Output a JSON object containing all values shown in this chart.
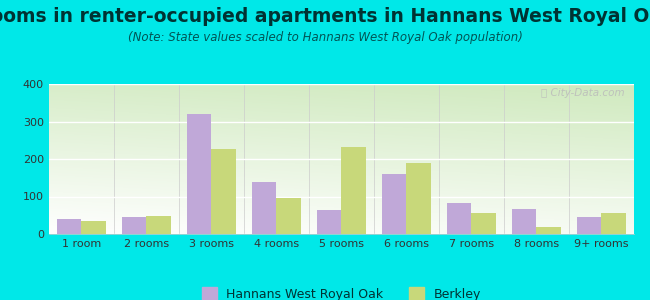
{
  "title": "Rooms in renter-occupied apartments in Hannans West Royal Oak",
  "subtitle": "(Note: State values scaled to Hannans West Royal Oak population)",
  "categories": [
    "1 room",
    "2 rooms",
    "3 rooms",
    "4 rooms",
    "5 rooms",
    "6 rooms",
    "7 rooms",
    "8 rooms",
    "9+ rooms"
  ],
  "hannans": [
    40,
    45,
    320,
    138,
    63,
    160,
    82,
    67,
    45
  ],
  "berkley": [
    35,
    48,
    228,
    95,
    233,
    190,
    57,
    20,
    57
  ],
  "hannans_color": "#c0a8d8",
  "berkley_color": "#c8d87a",
  "background_outer": "#00e8e8",
  "ylim": [
    0,
    400
  ],
  "yticks": [
    0,
    100,
    200,
    300,
    400
  ],
  "bar_width": 0.38,
  "legend_labels": [
    "Hannans West Royal Oak",
    "Berkley"
  ],
  "title_fontsize": 13.5,
  "subtitle_fontsize": 8.5,
  "tick_fontsize": 8,
  "title_color": "#003333",
  "subtitle_color": "#005555"
}
